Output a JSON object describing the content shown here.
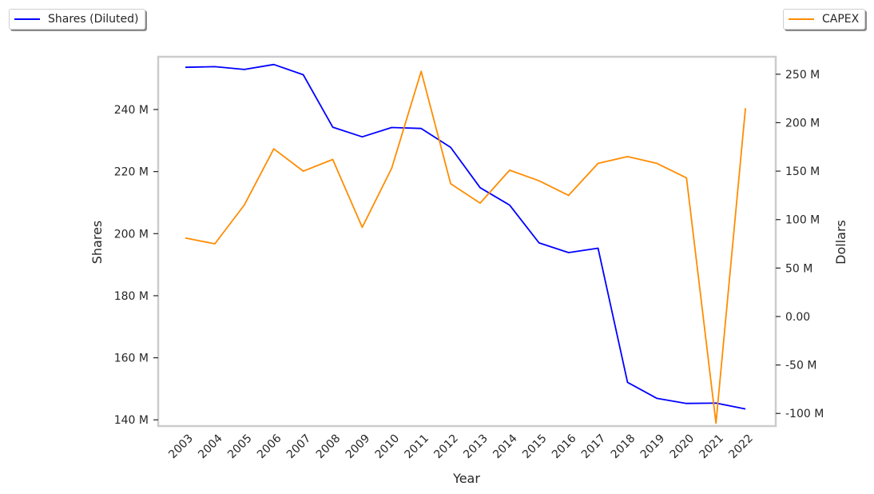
{
  "chart_data": {
    "type": "line",
    "xlabel": "Year",
    "categories": [
      "2003",
      "2004",
      "2005",
      "2006",
      "2007",
      "2008",
      "2009",
      "2010",
      "2011",
      "2012",
      "2013",
      "2014",
      "2015",
      "2016",
      "2017",
      "2018",
      "2019",
      "2020",
      "2021",
      "2022"
    ],
    "series": [
      {
        "name": "Shares (Diluted)",
        "axis": "left",
        "color": "#0000ff",
        "values": [
          253.6,
          253.8,
          252.9,
          254.5,
          251.2,
          234.3,
          231.2,
          234.2,
          233.9,
          227.8,
          214.8,
          209.2,
          197.0,
          193.9,
          195.3,
          152.1,
          146.9,
          145.3,
          145.4,
          143.5
        ]
      },
      {
        "name": "CAPEX",
        "axis": "right",
        "color": "#ff8c00",
        "values": [
          81,
          75,
          115,
          173,
          150,
          162,
          92,
          153,
          253,
          137,
          117,
          151,
          140,
          125,
          158,
          165,
          158,
          143,
          -110,
          215
        ]
      }
    ],
    "left_axis": {
      "label": "Shares",
      "ylim": [
        138,
        257
      ],
      "ticks": [
        140,
        160,
        180,
        200,
        220,
        240
      ],
      "tick_labels": [
        "140 M",
        "160 M",
        "180 M",
        "200 M",
        "220 M",
        "240 M"
      ]
    },
    "right_axis": {
      "label": "Dollars",
      "ylim": [
        -113,
        268
      ],
      "ticks": [
        -100,
        -50,
        0,
        50,
        100,
        150,
        200,
        250
      ],
      "tick_labels": [
        "-100 M",
        "-50 M",
        "0.00",
        "50 M",
        "100 M",
        "150 M",
        "200 M",
        "250 M"
      ]
    },
    "grid": false,
    "legend_placement": [
      "top-left",
      "top-right"
    ]
  }
}
